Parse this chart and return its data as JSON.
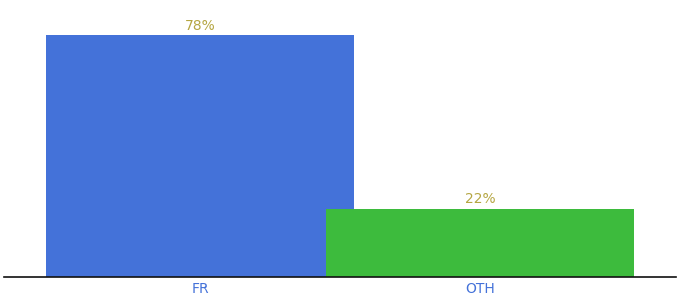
{
  "categories": [
    "FR",
    "OTH"
  ],
  "values": [
    78,
    22
  ],
  "bar_colors": [
    "#4472d9",
    "#3dbb3d"
  ],
  "label_texts": [
    "78%",
    "22%"
  ],
  "label_color": "#b5a642",
  "label_fontsize": 10,
  "tick_label_color": "#4472d9",
  "tick_label_fontsize": 10,
  "ylim": [
    0,
    88
  ],
  "bar_width": 0.55,
  "x_positions": [
    0.35,
    0.85
  ],
  "xlim": [
    0.0,
    1.2
  ],
  "background_color": "#ffffff",
  "spine_color": "#111111",
  "figure_width": 6.8,
  "figure_height": 3.0
}
